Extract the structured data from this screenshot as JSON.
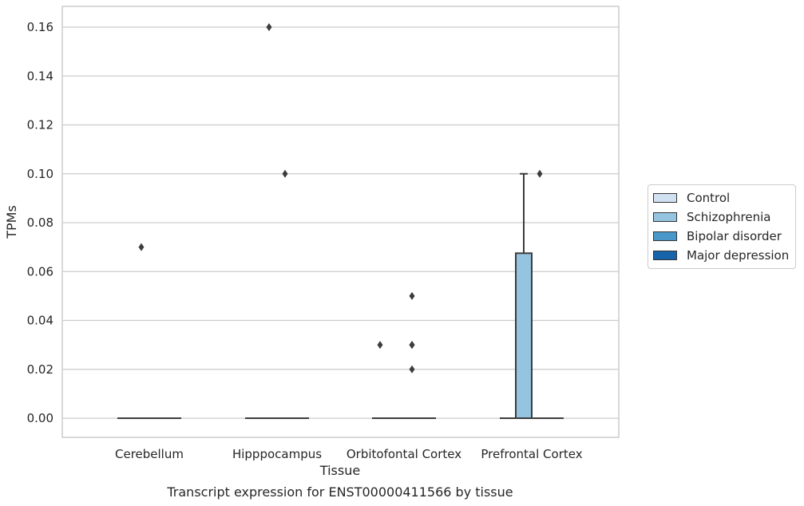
{
  "chart_data": {
    "type": "box",
    "title": "",
    "caption": "Transcript expression for ENST00000411566 by tissue",
    "xlabel": "Tissue",
    "ylabel": "TPMs",
    "ylim": [
      -0.008,
      0.168
    ],
    "yticks": [
      0.0,
      0.02,
      0.04,
      0.06,
      0.08,
      0.1,
      0.12,
      0.14,
      0.16
    ],
    "ytick_labels": [
      "0.00",
      "0.02",
      "0.04",
      "0.06",
      "0.08",
      "0.10",
      "0.12",
      "0.14",
      "0.16"
    ],
    "grid": "horizontal",
    "legend_position": "right",
    "categories": [
      "Cerebellum",
      "Hipppocampus",
      "Orbitofontal Cortex",
      "Prefrontal Cortex"
    ],
    "series": [
      {
        "name": "Control",
        "color": "#d0e1f2",
        "boxes": [
          {
            "q1": 0,
            "median": 0,
            "q3": 0,
            "whisker_low": 0,
            "whisker_high": 0,
            "outliers": []
          },
          {
            "q1": 0,
            "median": 0,
            "q3": 0,
            "whisker_low": 0,
            "whisker_high": 0,
            "outliers": []
          },
          {
            "q1": 0,
            "median": 0,
            "q3": 0,
            "whisker_low": 0,
            "whisker_high": 0,
            "outliers": [
              0.03
            ]
          },
          {
            "q1": 0,
            "median": 0,
            "q3": 0,
            "whisker_low": 0,
            "whisker_high": 0,
            "outliers": []
          }
        ]
      },
      {
        "name": "Schizophrenia",
        "color": "#94c4df",
        "boxes": [
          {
            "q1": 0,
            "median": 0,
            "q3": 0,
            "whisker_low": 0,
            "whisker_high": 0,
            "outliers": [
              0.07
            ]
          },
          {
            "q1": 0,
            "median": 0,
            "q3": 0,
            "whisker_low": 0,
            "whisker_high": 0,
            "outliers": [
              0.16
            ]
          },
          {
            "q1": 0,
            "median": 0,
            "q3": 0,
            "whisker_low": 0,
            "whisker_high": 0,
            "outliers": []
          },
          {
            "q1": 0,
            "median": 0,
            "q3": 0.0675,
            "whisker_low": 0,
            "whisker_high": 0.1,
            "outliers": []
          }
        ]
      },
      {
        "name": "Bipolar disorder",
        "color": "#4a98c9",
        "boxes": [
          {
            "q1": 0,
            "median": 0,
            "q3": 0,
            "whisker_low": 0,
            "whisker_high": 0,
            "outliers": []
          },
          {
            "q1": 0,
            "median": 0,
            "q3": 0,
            "whisker_low": 0,
            "whisker_high": 0,
            "outliers": [
              0.1
            ]
          },
          {
            "q1": 0,
            "median": 0,
            "q3": 0,
            "whisker_low": 0,
            "whisker_high": 0,
            "outliers": [
              0.03,
              0.05,
              0.03,
              0.02
            ]
          },
          {
            "q1": 0,
            "median": 0,
            "q3": 0,
            "whisker_low": 0,
            "whisker_high": 0,
            "outliers": [
              0.1
            ]
          }
        ]
      },
      {
        "name": "Major depression",
        "color": "#1764ab",
        "boxes": [
          {
            "q1": 0,
            "median": 0,
            "q3": 0,
            "whisker_low": 0,
            "whisker_high": 0,
            "outliers": []
          },
          {
            "q1": 0,
            "median": 0,
            "q3": 0,
            "whisker_low": 0,
            "whisker_high": 0,
            "outliers": []
          },
          {
            "q1": 0,
            "median": 0,
            "q3": 0,
            "whisker_low": 0,
            "whisker_high": 0,
            "outliers": []
          },
          {
            "q1": 0,
            "median": 0,
            "q3": 0,
            "whisker_low": 0,
            "whisker_high": 0,
            "outliers": []
          }
        ]
      }
    ]
  }
}
